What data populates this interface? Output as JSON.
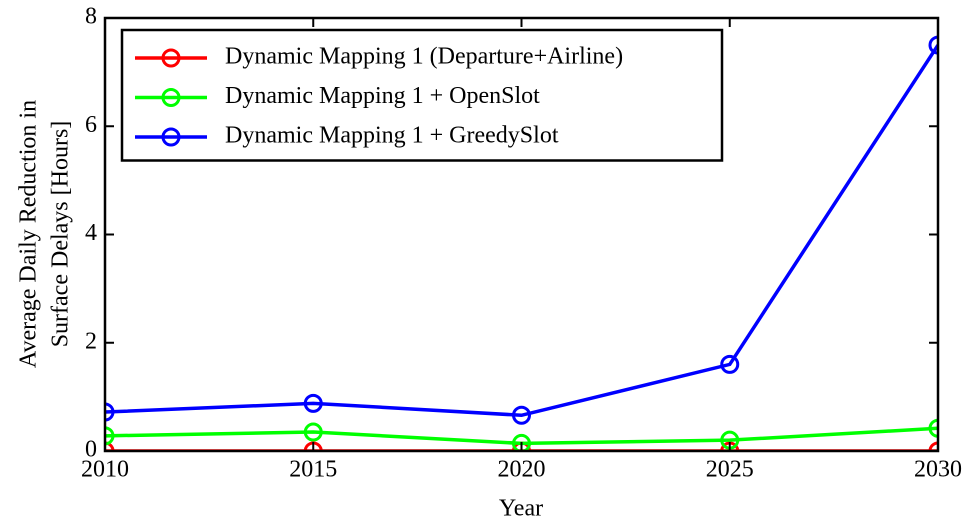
{
  "chart_data": {
    "type": "line",
    "xlabel": "Year",
    "ylabel": [
      "Average Daily Reduction in",
      "Surface Delays [Hours]"
    ],
    "x": [
      2010,
      2015,
      2020,
      2025,
      2030
    ],
    "series": [
      {
        "name": "Dynamic Mapping 1 (Departure+Airline)",
        "color": "#ff0000",
        "values": [
          0,
          0,
          0,
          0,
          0
        ]
      },
      {
        "name": "Dynamic Mapping 1 + OpenSlot",
        "color": "#00ff00",
        "values": [
          0.28,
          0.35,
          0.14,
          0.2,
          0.42
        ]
      },
      {
        "name": "Dynamic Mapping 1 + GreedySlot",
        "color": "#0000ff",
        "values": [
          0.72,
          0.88,
          0.66,
          1.6,
          7.5
        ]
      }
    ],
    "xlim": [
      2010,
      2030
    ],
    "xticks": [
      2010,
      2015,
      2020,
      2025,
      2030
    ],
    "ylim": [
      0,
      8
    ],
    "yticks": [
      0,
      2,
      4,
      6,
      8
    ],
    "grid": false,
    "legend": "upper left"
  }
}
